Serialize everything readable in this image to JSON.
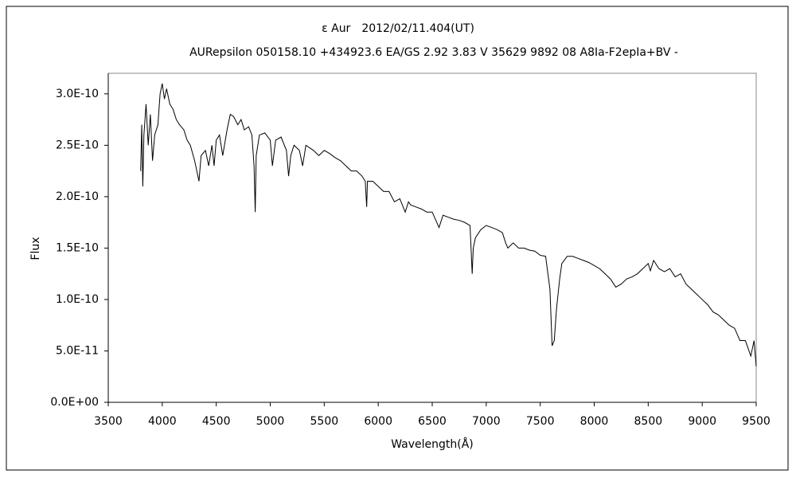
{
  "chart_data": {
    "type": "line",
    "title": "ε Aur　2012/02/11.404(UT)",
    "subtitle": "AURepsilon 050158.10 +434923.6 EA/GS 2.92 3.83 V 35629 9892 08 A8Ia-F2epIa+BV -",
    "x_label": "Wavelength(Å)",
    "y_label": "Flux",
    "color": "#000000",
    "xlim": [
      3500,
      9500
    ],
    "xticks": [
      3500,
      4000,
      4500,
      5000,
      5500,
      6000,
      6500,
      7000,
      7500,
      8000,
      8500,
      9000,
      9500
    ],
    "ylim": [
      0,
      3.2e-10
    ],
    "yticks": [
      {
        "value": 0,
        "label": "0.0E+00"
      },
      {
        "value": 5e-11,
        "label": "5.0E-11"
      },
      {
        "value": 1e-10,
        "label": "1.0E-10"
      },
      {
        "value": 1.5e-10,
        "label": "1.5E-10"
      },
      {
        "value": 2e-10,
        "label": "2.0E-10"
      },
      {
        "value": 2.5e-10,
        "label": "2.5E-10"
      },
      {
        "value": 3e-10,
        "label": "3.0E-10"
      }
    ],
    "grid": false,
    "x": [
      3800,
      3810,
      3820,
      3830,
      3850,
      3870,
      3890,
      3910,
      3930,
      3960,
      3980,
      4000,
      4020,
      4040,
      4070,
      4100,
      4130,
      4160,
      4200,
      4230,
      4260,
      4300,
      4320,
      4340,
      4360,
      4400,
      4430,
      4460,
      4480,
      4500,
      4530,
      4560,
      4600,
      4630,
      4660,
      4700,
      4730,
      4760,
      4800,
      4830,
      4850,
      4861,
      4870,
      4900,
      4950,
      5000,
      5020,
      5050,
      5100,
      5150,
      5170,
      5190,
      5220,
      5270,
      5300,
      5330,
      5400,
      5450,
      5500,
      5550,
      5600,
      5650,
      5700,
      5750,
      5800,
      5850,
      5880,
      5893,
      5900,
      5950,
      6000,
      6050,
      6100,
      6150,
      6200,
      6250,
      6280,
      6300,
      6350,
      6400,
      6450,
      6500,
      6563,
      6600,
      6650,
      6700,
      6750,
      6800,
      6850,
      6870,
      6880,
      6900,
      6950,
      7000,
      7050,
      7100,
      7150,
      7180,
      7200,
      7250,
      7300,
      7350,
      7400,
      7450,
      7500,
      7550,
      7590,
      7610,
      7630,
      7650,
      7680,
      7700,
      7750,
      7800,
      7850,
      7900,
      7950,
      8000,
      8050,
      8100,
      8150,
      8200,
      8250,
      8300,
      8350,
      8400,
      8450,
      8500,
      8520,
      8550,
      8600,
      8650,
      8700,
      8750,
      8800,
      8850,
      8900,
      8950,
      9000,
      9050,
      9100,
      9150,
      9200,
      9250,
      9300,
      9350,
      9400,
      9450,
      9480,
      9500
    ],
    "values": [
      2.25e-10,
      2.7e-10,
      2.1e-10,
      2.6e-10,
      2.9e-10,
      2.5e-10,
      2.8e-10,
      2.35e-10,
      2.6e-10,
      2.7e-10,
      3e-10,
      3.1e-10,
      2.95e-10,
      3.05e-10,
      2.9e-10,
      2.85e-10,
      2.75e-10,
      2.7e-10,
      2.65e-10,
      2.55e-10,
      2.5e-10,
      2.35e-10,
      2.25e-10,
      2.15e-10,
      2.4e-10,
      2.45e-10,
      2.3e-10,
      2.5e-10,
      2.3e-10,
      2.55e-10,
      2.6e-10,
      2.4e-10,
      2.65e-10,
      2.8e-10,
      2.78e-10,
      2.7e-10,
      2.75e-10,
      2.65e-10,
      2.68e-10,
      2.6e-10,
      2.3e-10,
      1.85e-10,
      2.4e-10,
      2.6e-10,
      2.62e-10,
      2.55e-10,
      2.3e-10,
      2.55e-10,
      2.58e-10,
      2.45e-10,
      2.2e-10,
      2.4e-10,
      2.5e-10,
      2.45e-10,
      2.3e-10,
      2.5e-10,
      2.45e-10,
      2.4e-10,
      2.45e-10,
      2.42e-10,
      2.38e-10,
      2.35e-10,
      2.3e-10,
      2.25e-10,
      2.25e-10,
      2.2e-10,
      2.15e-10,
      1.9e-10,
      2.15e-10,
      2.15e-10,
      2.1e-10,
      2.05e-10,
      2.05e-10,
      1.95e-10,
      1.98e-10,
      1.85e-10,
      1.95e-10,
      1.92e-10,
      1.9e-10,
      1.88e-10,
      1.85e-10,
      1.85e-10,
      1.7e-10,
      1.82e-10,
      1.8e-10,
      1.78e-10,
      1.77e-10,
      1.75e-10,
      1.72e-10,
      1.25e-10,
      1.5e-10,
      1.6e-10,
      1.68e-10,
      1.72e-10,
      1.7e-10,
      1.68e-10,
      1.65e-10,
      1.55e-10,
      1.5e-10,
      1.55e-10,
      1.5e-10,
      1.5e-10,
      1.48e-10,
      1.47e-10,
      1.43e-10,
      1.42e-10,
      1.1e-10,
      5.5e-11,
      6e-11,
      9e-11,
      1.2e-10,
      1.35e-10,
      1.42e-10,
      1.42e-10,
      1.4e-10,
      1.38e-10,
      1.36e-10,
      1.33e-10,
      1.3e-10,
      1.25e-10,
      1.2e-10,
      1.12e-10,
      1.15e-10,
      1.2e-10,
      1.22e-10,
      1.25e-10,
      1.3e-10,
      1.35e-10,
      1.28e-10,
      1.38e-10,
      1.3e-10,
      1.27e-10,
      1.3e-10,
      1.22e-10,
      1.25e-10,
      1.15e-10,
      1.1e-10,
      1.05e-10,
      1e-10,
      9.5e-11,
      8.8e-11,
      8.5e-11,
      8e-11,
      7.5e-11,
      7.2e-11,
      6e-11,
      6e-11,
      4.5e-11,
      6e-11,
      3.5e-11
    ]
  }
}
